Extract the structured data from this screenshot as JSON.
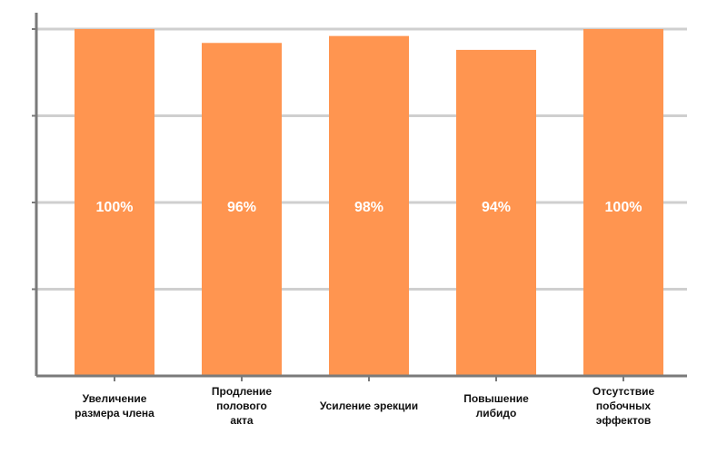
{
  "colors": {
    "bar": "#FF9550",
    "axis": "#7a7a7a",
    "grid": "#cfcfcf",
    "bar_label": "#ffffff",
    "tick_label": "#111111"
  },
  "chart_data": {
    "type": "bar",
    "title": "",
    "xlabel": "",
    "ylabel": "",
    "ylim": [
      0,
      100
    ],
    "grid": true,
    "categories": [
      [
        "Увеличение",
        "размера члена"
      ],
      [
        "Продление",
        "полового",
        "акта"
      ],
      [
        "Усиление эрекции"
      ],
      [
        "Повышение",
        "либидо"
      ],
      [
        "Отсутствие",
        "побочных",
        "эффектов"
      ]
    ],
    "values": [
      100,
      96,
      98,
      94,
      100
    ],
    "data_labels": [
      "100%",
      "96%",
      "98%",
      "94%",
      "100%"
    ]
  }
}
